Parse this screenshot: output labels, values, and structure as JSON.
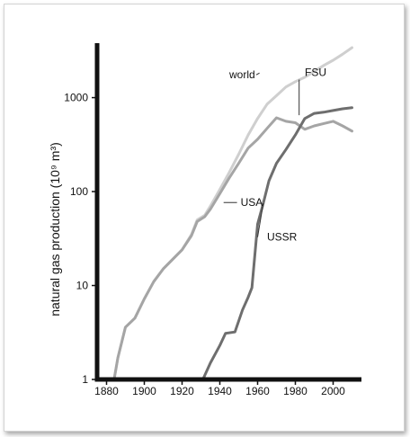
{
  "chart_data": {
    "type": "line",
    "ylabel": "natural gas production (10⁹ m³)",
    "yscale": "log",
    "ylim": [
      1,
      3800
    ],
    "xlim": [
      1875,
      2015
    ],
    "x_ticks": [
      1880,
      1900,
      1920,
      1940,
      1960,
      1980,
      2000
    ],
    "y_ticks": [
      1,
      10,
      100,
      1000
    ],
    "grid": false,
    "legend": "inline labels",
    "series": [
      {
        "name": "world",
        "color": "#cfcfcf",
        "x": [
          1884,
          1886,
          1890,
          1895,
          1900,
          1905,
          1910,
          1915,
          1920,
          1925,
          1928,
          1932,
          1935,
          1940,
          1945,
          1950,
          1955,
          1960,
          1965,
          1970,
          1975,
          1980,
          1985,
          1990,
          1995,
          2000,
          2005,
          2010
        ],
        "values": [
          1,
          1.7,
          3.6,
          4.5,
          7.2,
          11,
          15,
          19,
          24,
          35,
          50,
          56,
          70,
          105,
          160,
          250,
          400,
          600,
          850,
          1050,
          1300,
          1480,
          1650,
          1900,
          2200,
          2500,
          2900,
          3400
        ]
      },
      {
        "name": "USA",
        "color": "#a5a5a5",
        "x": [
          1884,
          1886,
          1890,
          1895,
          1900,
          1905,
          1910,
          1915,
          1920,
          1925,
          1928,
          1932,
          1935,
          1940,
          1945,
          1950,
          1955,
          1960,
          1965,
          1970,
          1975,
          1980,
          1985,
          1990,
          1995,
          2000,
          2005,
          2010
        ],
        "values": [
          1,
          1.7,
          3.6,
          4.5,
          7.2,
          11,
          15,
          19,
          24,
          34,
          48,
          54,
          65,
          95,
          140,
          200,
          290,
          360,
          470,
          610,
          560,
          540,
          460,
          500,
          530,
          560,
          500,
          440
        ]
      },
      {
        "name": "USSR / FSU",
        "color": "#6e6e6e",
        "x": [
          1930,
          1935,
          1940,
          1943,
          1948,
          1952,
          1955,
          1957,
          1960,
          1963,
          1966,
          1970,
          1975,
          1980,
          1985,
          1990,
          1995,
          2000,
          2005,
          2010
        ],
        "values": [
          0.9,
          1.5,
          2.3,
          3.1,
          3.2,
          5.5,
          7.5,
          9.5,
          45,
          75,
          130,
          200,
          280,
          400,
          600,
          680,
          700,
          730,
          760,
          780
        ]
      }
    ],
    "labels": [
      {
        "text": "world",
        "x": 1945,
        "y": 1600
      },
      {
        "text": "FSU",
        "x": 1985,
        "y": 1700
      },
      {
        "text": "USA",
        "x": 1951,
        "y": 70
      },
      {
        "text": "USSR",
        "x": 1965,
        "y": 30
      }
    ]
  }
}
